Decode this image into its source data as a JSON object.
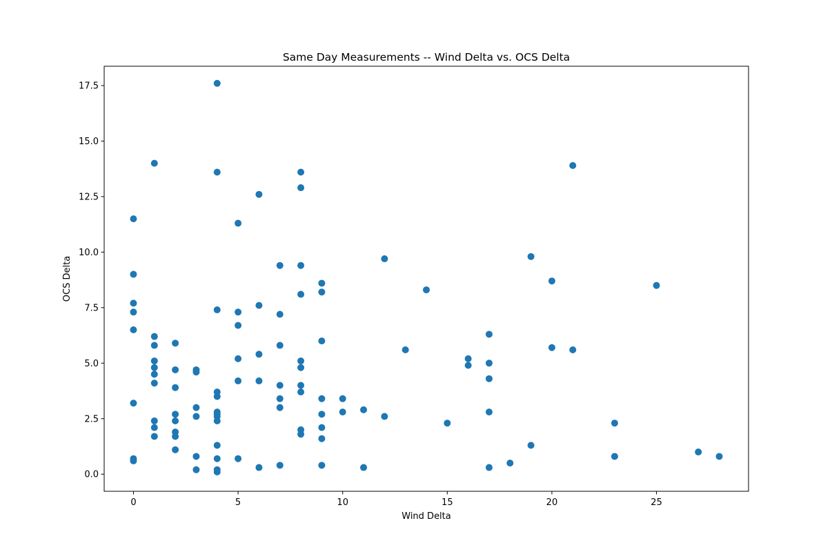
{
  "chart_data": {
    "type": "scatter",
    "title": "Same Day Measurements -- Wind Delta vs. OCS Delta",
    "xlabel": "Wind Delta",
    "ylabel": "OCS Delta",
    "xlim": [
      -1.4,
      29.4
    ],
    "ylim": [
      -0.77,
      18.37
    ],
    "xticks": [
      0,
      5,
      10,
      15,
      20,
      25
    ],
    "xtick_labels": [
      "0",
      "5",
      "10",
      "15",
      "20",
      "25"
    ],
    "yticks": [
      0.0,
      2.5,
      5.0,
      7.5,
      10.0,
      12.5,
      15.0,
      17.5
    ],
    "ytick_labels": [
      "0.0",
      "2.5",
      "5.0",
      "7.5",
      "10.0",
      "12.5",
      "15.0",
      "17.5"
    ],
    "grid": false,
    "marker_color": "#1f77b4",
    "series": [
      {
        "name": "OCS Delta",
        "points": [
          [
            0,
            11.5
          ],
          [
            0,
            9.0
          ],
          [
            0,
            7.7
          ],
          [
            0,
            7.3
          ],
          [
            0,
            6.5
          ],
          [
            0,
            3.2
          ],
          [
            0,
            0.7
          ],
          [
            0,
            0.6
          ],
          [
            1,
            14.0
          ],
          [
            1,
            6.2
          ],
          [
            1,
            5.8
          ],
          [
            1,
            5.1
          ],
          [
            1,
            4.8
          ],
          [
            1,
            4.5
          ],
          [
            1,
            4.1
          ],
          [
            1,
            2.4
          ],
          [
            1,
            2.1
          ],
          [
            1,
            1.7
          ],
          [
            2,
            5.9
          ],
          [
            2,
            4.7
          ],
          [
            2,
            3.9
          ],
          [
            2,
            2.7
          ],
          [
            2,
            2.4
          ],
          [
            2,
            1.9
          ],
          [
            2,
            1.7
          ],
          [
            2,
            1.1
          ],
          [
            3,
            4.7
          ],
          [
            3,
            4.6
          ],
          [
            3,
            3.0
          ],
          [
            3,
            2.6
          ],
          [
            3,
            0.8
          ],
          [
            3,
            0.2
          ],
          [
            4,
            17.6
          ],
          [
            4,
            13.6
          ],
          [
            4,
            7.4
          ],
          [
            4,
            3.7
          ],
          [
            4,
            3.5
          ],
          [
            4,
            2.8
          ],
          [
            4,
            2.7
          ],
          [
            4,
            2.6
          ],
          [
            4,
            2.4
          ],
          [
            4,
            1.3
          ],
          [
            4,
            0.7
          ],
          [
            4,
            0.2
          ],
          [
            4,
            0.1
          ],
          [
            5,
            11.3
          ],
          [
            5,
            7.3
          ],
          [
            5,
            6.7
          ],
          [
            5,
            5.2
          ],
          [
            5,
            4.2
          ],
          [
            5,
            0.7
          ],
          [
            6,
            12.6
          ],
          [
            6,
            7.6
          ],
          [
            6,
            5.4
          ],
          [
            6,
            4.2
          ],
          [
            6,
            0.3
          ],
          [
            7,
            9.4
          ],
          [
            7,
            7.2
          ],
          [
            7,
            5.8
          ],
          [
            7,
            4.0
          ],
          [
            7,
            3.4
          ],
          [
            7,
            3.0
          ],
          [
            7,
            0.4
          ],
          [
            8,
            13.6
          ],
          [
            8,
            12.9
          ],
          [
            8,
            9.4
          ],
          [
            8,
            8.1
          ],
          [
            8,
            5.1
          ],
          [
            8,
            4.8
          ],
          [
            8,
            4.0
          ],
          [
            8,
            3.7
          ],
          [
            8,
            2.0
          ],
          [
            8,
            1.8
          ],
          [
            9,
            8.6
          ],
          [
            9,
            8.2
          ],
          [
            9,
            6.0
          ],
          [
            9,
            3.4
          ],
          [
            9,
            2.7
          ],
          [
            9,
            2.1
          ],
          [
            9,
            1.6
          ],
          [
            9,
            0.4
          ],
          [
            10,
            3.4
          ],
          [
            10,
            2.8
          ],
          [
            11,
            2.9
          ],
          [
            11,
            0.3
          ],
          [
            12,
            9.7
          ],
          [
            12,
            2.6
          ],
          [
            13,
            5.6
          ],
          [
            14,
            8.3
          ],
          [
            15,
            2.3
          ],
          [
            16,
            5.2
          ],
          [
            16,
            4.9
          ],
          [
            17,
            6.3
          ],
          [
            17,
            5.0
          ],
          [
            17,
            4.3
          ],
          [
            17,
            2.8
          ],
          [
            17,
            0.3
          ],
          [
            18,
            0.5
          ],
          [
            19,
            9.8
          ],
          [
            19,
            1.3
          ],
          [
            20,
            8.7
          ],
          [
            20,
            5.7
          ],
          [
            21,
            13.9
          ],
          [
            21,
            5.6
          ],
          [
            23,
            2.3
          ],
          [
            23,
            0.8
          ],
          [
            25,
            8.5
          ],
          [
            27,
            1.0
          ],
          [
            28,
            0.8
          ]
        ]
      }
    ]
  }
}
